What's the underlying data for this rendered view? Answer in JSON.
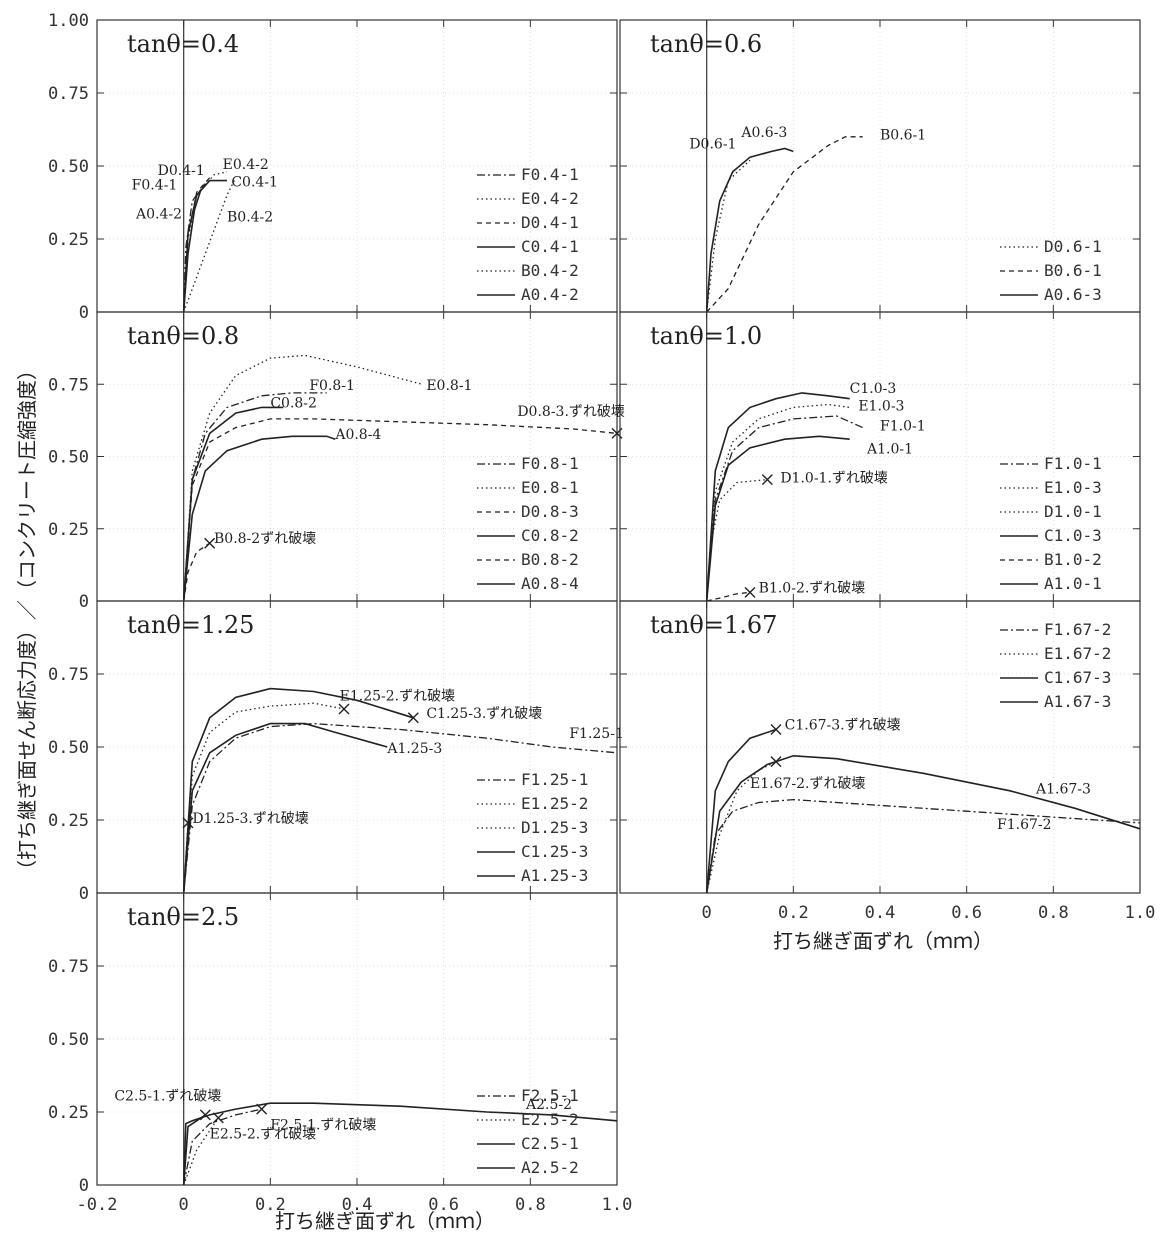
{
  "figure": {
    "y_axis_label": "（打ち継ぎ面せん断応力度）／（コンクリート圧縮強度）",
    "x_axis_label": "打ち継ぎ面ずれ（ｍｍ）"
  },
  "chart_data": [
    {
      "type": "line",
      "title": "tanθ=0.4",
      "xlim": [
        -0.2,
        1.0
      ],
      "ylim": [
        0,
        1.0
      ],
      "x_ticks": [],
      "y_ticks": [
        "1.00",
        "0.75",
        "0.50",
        "0.25",
        "0"
      ],
      "legend": [
        "F0.4-1",
        "E0.4-2",
        "D0.4-1",
        "C0.4-1",
        "B0.4-2",
        "A0.4-2"
      ],
      "series": [
        {
          "name": "F0.4-1",
          "style": "dashdot",
          "x": [
            0,
            0.005,
            0.02,
            0.05
          ],
          "y": [
            0,
            0.22,
            0.38,
            0.44
          ]
        },
        {
          "name": "E0.4-2",
          "style": "dotted",
          "x": [
            0,
            0.01,
            0.03,
            0.07,
            0.1
          ],
          "y": [
            0,
            0.25,
            0.4,
            0.47,
            0.48
          ]
        },
        {
          "name": "D0.4-1",
          "style": "dashed",
          "x": [
            0,
            0.01,
            0.03,
            0.06
          ],
          "y": [
            0,
            0.26,
            0.41,
            0.46
          ]
        },
        {
          "name": "C0.4-1",
          "style": "solid",
          "x": [
            0,
            0.01,
            0.03,
            0.06,
            0.1
          ],
          "y": [
            0,
            0.27,
            0.4,
            0.45,
            0.45
          ]
        },
        {
          "name": "B0.4-2",
          "style": "dotted",
          "x": [
            0,
            0.03,
            0.07,
            0.1,
            0.12
          ],
          "y": [
            0,
            0.12,
            0.28,
            0.4,
            0.46
          ]
        },
        {
          "name": "A0.4-2",
          "style": "solid",
          "x": [
            0,
            0.01,
            0.025,
            0.04
          ],
          "y": [
            0,
            0.2,
            0.35,
            0.42
          ]
        }
      ],
      "annotations": [
        {
          "text": "D0.4-1",
          "x": -0.06,
          "y": 0.47
        },
        {
          "text": "E0.4-2",
          "x": 0.09,
          "y": 0.49
        },
        {
          "text": "F0.4-1",
          "x": -0.12,
          "y": 0.42
        },
        {
          "text": "C0.4-1",
          "x": 0.11,
          "y": 0.43
        },
        {
          "text": "A0.4-2",
          "x": -0.11,
          "y": 0.32
        },
        {
          "text": "B0.4-2",
          "x": 0.1,
          "y": 0.31
        }
      ]
    },
    {
      "type": "line",
      "title": "tanθ=0.6",
      "xlim": [
        -0.2,
        1.0
      ],
      "ylim": [
        0,
        1.0
      ],
      "x_ticks": [],
      "y_ticks": [],
      "legend": [
        "D0.6-1",
        "B0.6-1",
        "A0.6-3"
      ],
      "series": [
        {
          "name": "D0.6-1",
          "style": "dotted",
          "x": [
            0,
            0.02,
            0.05,
            0.1
          ],
          "y": [
            0,
            0.25,
            0.45,
            0.52
          ]
        },
        {
          "name": "B0.6-1",
          "style": "dashed",
          "x": [
            0,
            0.05,
            0.12,
            0.2,
            0.28,
            0.32,
            0.36
          ],
          "y": [
            0,
            0.08,
            0.3,
            0.48,
            0.57,
            0.6,
            0.6
          ]
        },
        {
          "name": "A0.6-3",
          "style": "solid",
          "x": [
            0,
            0.01,
            0.03,
            0.06,
            0.1,
            0.15,
            0.18,
            0.2
          ],
          "y": [
            0,
            0.2,
            0.38,
            0.48,
            0.53,
            0.55,
            0.56,
            0.55
          ]
        }
      ],
      "annotations": [
        {
          "text": "D0.6-1",
          "x": -0.04,
          "y": 0.56
        },
        {
          "text": "A0.6-3",
          "x": 0.08,
          "y": 0.6
        },
        {
          "text": "B0.6-1",
          "x": 0.4,
          "y": 0.59
        }
      ]
    },
    {
      "type": "line",
      "title": "tanθ=0.8",
      "xlim": [
        -0.2,
        1.0
      ],
      "ylim": [
        0,
        1.0
      ],
      "x_ticks": [],
      "y_ticks": [
        "0.75",
        "0.50",
        "0.25",
        "0"
      ],
      "legend": [
        "F0.8-1",
        "E0.8-1",
        "D0.8-3",
        "C0.8-2",
        "B0.8-2",
        "A0.8-4"
      ],
      "series": [
        {
          "name": "F0.8-1",
          "style": "dashdot",
          "x": [
            0,
            0.02,
            0.05,
            0.1,
            0.18,
            0.25,
            0.33
          ],
          "y": [
            0,
            0.42,
            0.58,
            0.67,
            0.71,
            0.72,
            0.72
          ]
        },
        {
          "name": "E0.8-1",
          "style": "dotted",
          "x": [
            0,
            0.02,
            0.06,
            0.12,
            0.2,
            0.28,
            0.4,
            0.55
          ],
          "y": [
            0,
            0.45,
            0.65,
            0.78,
            0.84,
            0.85,
            0.81,
            0.75
          ]
        },
        {
          "name": "D0.8-3",
          "style": "dashed",
          "x": [
            0,
            0.02,
            0.06,
            0.12,
            0.2,
            0.3,
            0.5,
            0.7,
            0.9,
            1.0
          ],
          "y": [
            0,
            0.4,
            0.55,
            0.6,
            0.63,
            0.63,
            0.62,
            0.61,
            0.595,
            0.58
          ]
        },
        {
          "name": "C0.8-2",
          "style": "solid",
          "x": [
            0,
            0.02,
            0.06,
            0.12,
            0.18,
            0.23
          ],
          "y": [
            0,
            0.42,
            0.58,
            0.65,
            0.67,
            0.67
          ]
        },
        {
          "name": "B0.8-2",
          "style": "dashed",
          "x": [
            0,
            0.01,
            0.03,
            0.06
          ],
          "y": [
            0,
            0.1,
            0.17,
            0.2
          ]
        },
        {
          "name": "A0.8-4",
          "style": "solid",
          "x": [
            0,
            0.02,
            0.05,
            0.1,
            0.18,
            0.25,
            0.33,
            0.35
          ],
          "y": [
            0,
            0.3,
            0.45,
            0.52,
            0.56,
            0.57,
            0.57,
            0.56
          ]
        }
      ],
      "annotations": [
        {
          "text": "F0.8-1",
          "x": 0.29,
          "y": 0.73
        },
        {
          "text": "E0.8-1",
          "x": 0.56,
          "y": 0.73
        },
        {
          "text": "C0.8-2",
          "x": 0.2,
          "y": 0.67
        },
        {
          "text": "D0.8-3.ずれ破壊",
          "x": 0.77,
          "y": 0.64
        },
        {
          "text": "A0.8-4",
          "x": 0.35,
          "y": 0.56
        },
        {
          "text": "B0.8-2ずれ破壊",
          "x": 0.07,
          "y": 0.2
        }
      ],
      "failure_marks": [
        {
          "x": 1.0,
          "y": 0.58
        },
        {
          "x": 0.06,
          "y": 0.2
        }
      ]
    },
    {
      "type": "line",
      "title": "tanθ=1.0",
      "xlim": [
        -0.2,
        1.0
      ],
      "ylim": [
        0,
        1.0
      ],
      "x_ticks": [],
      "y_ticks": [],
      "legend": [
        "F1.0-1",
        "E1.0-3",
        "D1.0-1",
        "C1.0-3",
        "B1.0-2",
        "A1.0-1"
      ],
      "series": [
        {
          "name": "F1.0-1",
          "style": "dashdot",
          "x": [
            0,
            0.02,
            0.06,
            0.12,
            0.2,
            0.3,
            0.36
          ],
          "y": [
            0,
            0.35,
            0.52,
            0.6,
            0.63,
            0.64,
            0.6
          ]
        },
        {
          "name": "E1.0-3",
          "style": "dotted",
          "x": [
            0,
            0.02,
            0.06,
            0.12,
            0.2,
            0.28,
            0.33
          ],
          "y": [
            0,
            0.38,
            0.55,
            0.63,
            0.67,
            0.68,
            0.67
          ]
        },
        {
          "name": "D1.0-1",
          "style": "dotted",
          "x": [
            0,
            0.01,
            0.03,
            0.07,
            0.14
          ],
          "y": [
            0,
            0.2,
            0.35,
            0.41,
            0.42
          ]
        },
        {
          "name": "C1.0-3",
          "style": "solid",
          "x": [
            0,
            0.02,
            0.05,
            0.1,
            0.16,
            0.22,
            0.28,
            0.33
          ],
          "y": [
            0,
            0.45,
            0.6,
            0.67,
            0.7,
            0.72,
            0.71,
            0.7
          ]
        },
        {
          "name": "B1.0-2",
          "style": "dashed",
          "x": [
            0,
            0.03,
            0.07,
            0.1
          ],
          "y": [
            0,
            0.01,
            0.025,
            0.03
          ]
        },
        {
          "name": "A1.0-1",
          "style": "solid",
          "x": [
            0,
            0.02,
            0.05,
            0.1,
            0.18,
            0.26,
            0.33
          ],
          "y": [
            0,
            0.33,
            0.47,
            0.53,
            0.56,
            0.57,
            0.56
          ]
        }
      ],
      "annotations": [
        {
          "text": "C1.0-3",
          "x": 0.33,
          "y": 0.72
        },
        {
          "text": "E1.0-3",
          "x": 0.35,
          "y": 0.66
        },
        {
          "text": "F1.0-1",
          "x": 0.4,
          "y": 0.59
        },
        {
          "text": "A1.0-1",
          "x": 0.37,
          "y": 0.51
        },
        {
          "text": "D1.0-1.ずれ破壊",
          "x": 0.17,
          "y": 0.41
        },
        {
          "text": "B1.0-2.ずれ破壊",
          "x": 0.12,
          "y": 0.03
        }
      ],
      "failure_marks": [
        {
          "x": 0.14,
          "y": 0.42
        },
        {
          "x": 0.1,
          "y": 0.03
        }
      ]
    },
    {
      "type": "line",
      "title": "tanθ=1.25",
      "xlim": [
        -0.2,
        1.0
      ],
      "ylim": [
        0,
        1.0
      ],
      "x_ticks": [],
      "y_ticks": [
        "0.75",
        "0.50",
        "0.25",
        "0"
      ],
      "legend": [
        "F1.25-1",
        "E1.25-2",
        "D1.25-3",
        "C1.25-3",
        "A1.25-3"
      ],
      "series": [
        {
          "name": "F1.25-1",
          "style": "dashdot",
          "x": [
            0,
            0.02,
            0.06,
            0.12,
            0.2,
            0.3,
            0.5,
            0.7,
            0.85,
            1.0
          ],
          "y": [
            0,
            0.3,
            0.45,
            0.53,
            0.57,
            0.58,
            0.56,
            0.53,
            0.5,
            0.48
          ]
        },
        {
          "name": "E1.25-2",
          "style": "dotted",
          "x": [
            0,
            0.02,
            0.06,
            0.12,
            0.2,
            0.3,
            0.37
          ],
          "y": [
            0,
            0.4,
            0.55,
            0.62,
            0.64,
            0.65,
            0.63
          ]
        },
        {
          "name": "D1.25-3",
          "style": "dotted",
          "x": [
            0,
            0.01
          ],
          "y": [
            0,
            0.24
          ]
        },
        {
          "name": "C1.25-3",
          "style": "solid",
          "x": [
            0,
            0.02,
            0.06,
            0.12,
            0.2,
            0.3,
            0.4,
            0.53
          ],
          "y": [
            0,
            0.45,
            0.6,
            0.67,
            0.7,
            0.69,
            0.66,
            0.6
          ]
        },
        {
          "name": "A1.25-3",
          "style": "solid",
          "x": [
            0,
            0.02,
            0.06,
            0.12,
            0.2,
            0.28,
            0.35,
            0.47
          ],
          "y": [
            0,
            0.35,
            0.48,
            0.54,
            0.58,
            0.58,
            0.55,
            0.5
          ]
        }
      ],
      "annotations": [
        {
          "text": "E1.25-2.ずれ破壊",
          "x": 0.36,
          "y": 0.66
        },
        {
          "text": "C1.25-3.ずれ破壊",
          "x": 0.56,
          "y": 0.6
        },
        {
          "text": "F1.25-1",
          "x": 0.89,
          "y": 0.53
        },
        {
          "text": "A1.25-3",
          "x": 0.47,
          "y": 0.48
        },
        {
          "text": "D1.25-3.ずれ破壊",
          "x": 0.02,
          "y": 0.24
        }
      ],
      "failure_marks": [
        {
          "x": 0.37,
          "y": 0.63
        },
        {
          "x": 0.53,
          "y": 0.6
        },
        {
          "x": 0.01,
          "y": 0.24
        }
      ]
    },
    {
      "type": "line",
      "title": "tanθ=1.67",
      "xlim": [
        -0.2,
        1.0
      ],
      "ylim": [
        0,
        1.0
      ],
      "x_ticks": [
        "0",
        "0.2",
        "0.4",
        "0.6",
        "0.8",
        "1.0"
      ],
      "y_ticks": [],
      "legend": [
        "F1.67-2",
        "E1.67-2",
        "C1.67-3",
        "A1.67-3"
      ],
      "series": [
        {
          "name": "F1.67-2",
          "style": "dashdot",
          "x": [
            0,
            0.02,
            0.06,
            0.12,
            0.2,
            0.4,
            0.6,
            0.8,
            1.0
          ],
          "y": [
            0,
            0.2,
            0.28,
            0.31,
            0.32,
            0.3,
            0.28,
            0.26,
            0.24
          ]
        },
        {
          "name": "E1.67-2",
          "style": "dotted",
          "x": [
            0,
            0.03,
            0.07,
            0.12,
            0.16
          ],
          "y": [
            0,
            0.2,
            0.35,
            0.42,
            0.45
          ]
        },
        {
          "name": "C1.67-3",
          "style": "solid",
          "x": [
            0,
            0.02,
            0.05,
            0.1,
            0.16
          ],
          "y": [
            0,
            0.35,
            0.45,
            0.53,
            0.56
          ]
        },
        {
          "name": "A1.67-3",
          "style": "solid",
          "x": [
            0,
            0.03,
            0.08,
            0.14,
            0.2,
            0.3,
            0.5,
            0.7,
            0.85,
            1.0
          ],
          "y": [
            0,
            0.28,
            0.38,
            0.44,
            0.47,
            0.46,
            0.41,
            0.35,
            0.29,
            0.22
          ]
        }
      ],
      "annotations": [
        {
          "text": "C1.67-3.ずれ破壊",
          "x": 0.18,
          "y": 0.56
        },
        {
          "text": "E1.67-2.ずれ破壊",
          "x": 0.1,
          "y": 0.36
        },
        {
          "text": "A1.67-3",
          "x": 0.76,
          "y": 0.34
        },
        {
          "text": "F1.67-2",
          "x": 0.67,
          "y": 0.22
        }
      ],
      "failure_marks": [
        {
          "x": 0.16,
          "y": 0.56
        },
        {
          "x": 0.16,
          "y": 0.45
        }
      ]
    },
    {
      "type": "line",
      "title": "tanθ=2.5",
      "xlim": [
        -0.2,
        1.0
      ],
      "ylim": [
        0,
        1.0
      ],
      "x_ticks": [
        "-0.2",
        "0",
        "0.2",
        "0.4",
        "0.6",
        "0.8",
        "1.0"
      ],
      "y_ticks": [
        "0.75",
        "0.50",
        "0.25",
        "0"
      ],
      "legend": [
        "F2.5-1",
        "E2.5-2",
        "C2.5-1",
        "A2.5-2"
      ],
      "series": [
        {
          "name": "F2.5-1",
          "style": "dashdot",
          "x": [
            0,
            0.02,
            0.06,
            0.12,
            0.18
          ],
          "y": [
            0,
            0.15,
            0.21,
            0.24,
            0.26
          ]
        },
        {
          "name": "E2.5-2",
          "style": "dotted",
          "x": [
            0,
            0.03,
            0.08
          ],
          "y": [
            0,
            0.12,
            0.23
          ]
        },
        {
          "name": "C2.5-1",
          "style": "solid",
          "x": [
            0,
            0.01,
            0.03,
            0.05
          ],
          "y": [
            0,
            0.2,
            0.22,
            0.24
          ]
        },
        {
          "name": "A2.5-2",
          "style": "solid",
          "x": [
            0,
            0.005,
            0.02,
            0.06,
            0.12,
            0.2,
            0.3,
            0.5,
            0.7,
            0.85,
            1.0
          ],
          "y": [
            0,
            0.21,
            0.22,
            0.24,
            0.26,
            0.28,
            0.28,
            0.27,
            0.25,
            0.24,
            0.22
          ]
        }
      ],
      "annotations": [
        {
          "text": "C2.5-1.ずれ破壊",
          "x": -0.16,
          "y": 0.29
        },
        {
          "text": "F2.5-1.ずれ破壊",
          "x": 0.2,
          "y": 0.19
        },
        {
          "text": "E2.5-2.ずれ破壊",
          "x": 0.06,
          "y": 0.16
        },
        {
          "text": "A2.5-2",
          "x": 0.79,
          "y": 0.26
        }
      ],
      "failure_marks": [
        {
          "x": 0.05,
          "y": 0.24
        },
        {
          "x": 0.08,
          "y": 0.23
        },
        {
          "x": 0.18,
          "y": 0.26
        }
      ]
    }
  ]
}
